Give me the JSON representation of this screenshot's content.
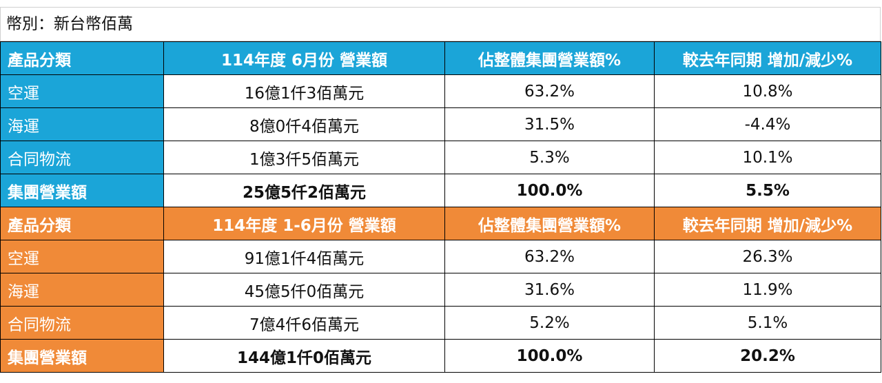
{
  "unit_label": "幣別：新台幣佰萬",
  "colors": {
    "monthly_header": "#1ba5d8",
    "cumulative_header": "#f08a38"
  },
  "monthly": {
    "headers": [
      "產品分類",
      "114年度 6月份 營業額",
      "佔整體集團營業額%",
      "較去年同期 增加/減少%"
    ],
    "rows": [
      [
        "空運",
        "16億1仟3佰萬元",
        "63.2%",
        "10.8%"
      ],
      [
        "海運",
        "8億0仟4佰萬元",
        "31.5%",
        "-4.4%"
      ],
      [
        "合同物流",
        "1億3仟5佰萬元",
        "5.3%",
        "10.1%"
      ]
    ],
    "total": [
      "集團營業額",
      "25億5仟2佰萬元",
      "100.0%",
      "5.5%"
    ]
  },
  "cumulative": {
    "headers": [
      "產品分類",
      "114年度 1-6月份 營業額",
      "佔整體集團營業額%",
      "較去年同期 增加/減少%"
    ],
    "rows": [
      [
        "空運",
        "91億1仟4佰萬元",
        "63.2%",
        "26.3%"
      ],
      [
        "海運",
        "45億5仟0佰萬元",
        "31.6%",
        "11.9%"
      ],
      [
        "合同物流",
        "7億4仟6佰萬元",
        "5.2%",
        "5.1%"
      ]
    ],
    "total": [
      "集團營業額",
      "144億1仟0佰萬元",
      "100.0%",
      "20.2%"
    ]
  }
}
